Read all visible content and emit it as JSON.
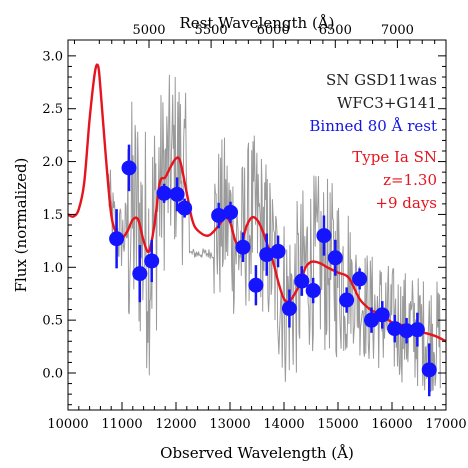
{
  "chart_data": {
    "type": "scatter",
    "xlabel": "Observed Wavelength (Å)",
    "ylabel": "Flux (normalized)",
    "top_axis_label": "Rest Wavelength (Å)",
    "xlim": [
      10000,
      17000
    ],
    "ylim": [
      -0.35,
      3.15
    ],
    "x_ticks": [
      10000,
      11000,
      12000,
      13000,
      14000,
      15000,
      16000,
      17000
    ],
    "y_ticks": [
      0.0,
      0.5,
      1.0,
      1.5,
      2.0,
      2.5,
      3.0
    ],
    "y_tick_labels": [
      "0.0",
      "0.5",
      "1.0",
      "1.5",
      "2.0",
      "2.5",
      "3.0"
    ],
    "top_ticks": [
      5000,
      5500,
      6000,
      6500,
      7000
    ],
    "redshift": 1.3,
    "grid": false,
    "annotations": [
      {
        "text": "SN GSD11was",
        "color": "#222222"
      },
      {
        "text": "WFC3+G141",
        "color": "#222222"
      },
      {
        "text": "Binned 80 Å rest",
        "color": "#1414e6"
      },
      {
        "text": "Type Ia SN",
        "color": "#e6141e"
      },
      {
        "text": "z=1.30",
        "color": "#e6141e"
      },
      {
        "text": "+9 days",
        "color": "#e6141e"
      }
    ],
    "colors": {
      "raw_spectrum": "#9a9a9a",
      "template": "#e6141e",
      "binned": "#1414ff",
      "axes": "#000000"
    },
    "series": [
      {
        "role": "binned",
        "points": [
          {
            "x": 10900,
            "y": 1.27,
            "err": 0.28
          },
          {
            "x": 11130,
            "y": 1.94,
            "err": 0.22
          },
          {
            "x": 11330,
            "y": 0.94,
            "err": 0.27
          },
          {
            "x": 11550,
            "y": 1.06,
            "err": 0.2
          },
          {
            "x": 11780,
            "y": 1.7,
            "err": 0.09
          },
          {
            "x": 12020,
            "y": 1.69,
            "err": 0.16
          },
          {
            "x": 12160,
            "y": 1.56,
            "err": 0.09
          },
          {
            "x": 12790,
            "y": 1.49,
            "err": 0.12
          },
          {
            "x": 13010,
            "y": 1.52,
            "err": 0.1
          },
          {
            "x": 13240,
            "y": 1.19,
            "err": 0.14
          },
          {
            "x": 13480,
            "y": 0.83,
            "err": 0.19
          },
          {
            "x": 13680,
            "y": 1.12,
            "err": 0.2
          },
          {
            "x": 13890,
            "y": 1.15,
            "err": 0.15
          },
          {
            "x": 14100,
            "y": 0.61,
            "err": 0.18
          },
          {
            "x": 14330,
            "y": 0.87,
            "err": 0.14
          },
          {
            "x": 14540,
            "y": 0.78,
            "err": 0.12
          },
          {
            "x": 14740,
            "y": 1.3,
            "err": 0.19
          },
          {
            "x": 14950,
            "y": 1.09,
            "err": 0.17
          },
          {
            "x": 15160,
            "y": 0.69,
            "err": 0.12
          },
          {
            "x": 15400,
            "y": 0.89,
            "err": 0.1
          },
          {
            "x": 15620,
            "y": 0.5,
            "err": 0.12
          },
          {
            "x": 15820,
            "y": 0.55,
            "err": 0.13
          },
          {
            "x": 16050,
            "y": 0.42,
            "err": 0.13
          },
          {
            "x": 16270,
            "y": 0.4,
            "err": 0.12
          },
          {
            "x": 16470,
            "y": 0.41,
            "err": 0.16
          },
          {
            "x": 16690,
            "y": 0.03,
            "err": 0.25
          }
        ]
      },
      {
        "role": "template",
        "x": [
          10000,
          10100,
          10200,
          10300,
          10400,
          10500,
          10560,
          10600,
          10700,
          10800,
          10900,
          11000,
          11100,
          11200,
          11300,
          11400,
          11500,
          11600,
          11700,
          11800,
          11900,
          12000,
          12080,
          12200,
          12300,
          12400,
          12600,
          12800,
          12900,
          13000,
          13100,
          13200,
          13300,
          13400,
          13500,
          13600,
          13700,
          13800,
          13900,
          14000,
          14100,
          14200,
          14300,
          14400,
          14500,
          14600,
          14700,
          14800,
          15000,
          15200,
          15400,
          15600,
          15800,
          16000,
          16200,
          16400,
          16600,
          16800,
          17000
        ],
        "y": [
          1.5,
          1.48,
          1.55,
          1.8,
          2.4,
          2.85,
          2.9,
          2.7,
          2.05,
          1.5,
          1.32,
          1.28,
          1.34,
          1.45,
          1.45,
          1.25,
          1.15,
          1.4,
          1.8,
          1.85,
          1.95,
          2.03,
          2.0,
          1.7,
          1.45,
          1.35,
          1.3,
          1.4,
          1.47,
          1.43,
          1.25,
          1.2,
          1.38,
          1.47,
          1.45,
          1.35,
          1.2,
          1.05,
          0.85,
          0.7,
          0.68,
          0.75,
          0.85,
          1.0,
          1.05,
          1.05,
          1.03,
          1.0,
          0.95,
          0.9,
          0.7,
          0.6,
          0.55,
          0.48,
          0.45,
          0.4,
          0.38,
          0.35,
          0.3
        ]
      }
    ]
  }
}
